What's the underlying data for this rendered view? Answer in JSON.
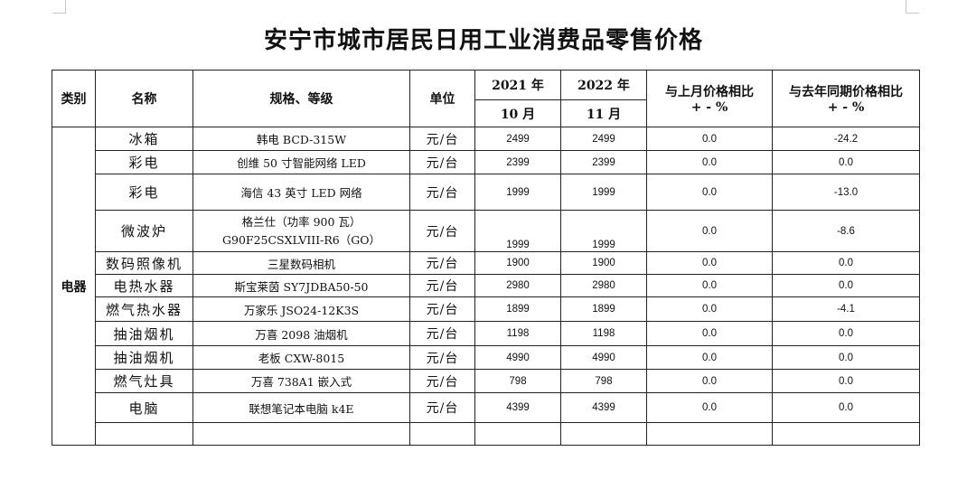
{
  "title": "安宁市城市居民日用工业消费品零售价格",
  "headers": {
    "category": "类别",
    "name": "名称",
    "spec": "规格、等级",
    "unit": "单位",
    "year1": "2021 年",
    "month1": "10 月",
    "year2": "2022 年",
    "month2": "11 月",
    "mom_line1": "与上月价格相比",
    "mom_line2": "+ - %",
    "yoy_line1": "与去年同期价格相比",
    "yoy_line2": "+ - %"
  },
  "category": "电器",
  "rows": [
    {
      "name": "冰箱",
      "spec": "韩电 BCD-315W",
      "spec2": "",
      "unit": "元/台",
      "p2021": "2499",
      "p2022": "2499",
      "mom": "0.0",
      "yoy": "-24.2"
    },
    {
      "name": "彩电",
      "spec": "创维 50 寸智能网络 LED",
      "spec2": "",
      "unit": "元/台",
      "p2021": "2399",
      "p2022": "2399",
      "mom": "0.0",
      "yoy": "0.0"
    },
    {
      "name": "彩电",
      "spec": "海信 43 英寸 LED 网络",
      "spec2": "",
      "unit": "元/台",
      "p2021": "1999",
      "p2022": "1999",
      "mom": "0.0",
      "yoy": "-13.0"
    },
    {
      "name": "微波炉",
      "spec": "格兰仕（功率 900 瓦）",
      "spec2": "G90F25CSXLVIII-R6（GO）",
      "unit": "元/台",
      "p2021": "1999",
      "p2022": "1999",
      "mom": "0.0",
      "yoy": "-8.6"
    },
    {
      "name": "数码照像机",
      "spec": "三星数码相机",
      "spec2": "",
      "unit": "元/台",
      "p2021": "1900",
      "p2022": "1900",
      "mom": "0.0",
      "yoy": "0.0"
    },
    {
      "name": "电热水器",
      "spec": "斯宝莱茵 SY7JDBA50-50",
      "spec2": "",
      "unit": "元/台",
      "p2021": "2980",
      "p2022": "2980",
      "mom": "0.0",
      "yoy": "0.0"
    },
    {
      "name": "燃气热水器",
      "spec": "万家乐 JSO24-12K3S",
      "spec2": "",
      "unit": "元/台",
      "p2021": "1899",
      "p2022": "1899",
      "mom": "0.0",
      "yoy": "-4.1"
    },
    {
      "name": "抽油烟机",
      "spec": "万喜 2098 油烟机",
      "spec2": "",
      "unit": "元/台",
      "p2021": "1198",
      "p2022": "1198",
      "mom": "0.0",
      "yoy": "0.0"
    },
    {
      "name": "抽油烟机",
      "spec": "老板 CXW-8015",
      "spec2": "",
      "unit": "元/台",
      "p2021": "4990",
      "p2022": "4990",
      "mom": "0.0",
      "yoy": "0.0"
    },
    {
      "name": "燃气灶具",
      "spec": "万喜 738A1 嵌入式",
      "spec2": "",
      "unit": "元/台",
      "p2021": "798",
      "p2022": "798",
      "mom": "0.0",
      "yoy": "0.0"
    },
    {
      "name": "电脑",
      "spec": "联想笔记本电脑 k4E",
      "spec2": "",
      "unit": "元/台",
      "p2021": "4399",
      "p2022": "4399",
      "mom": "0.0",
      "yoy": "0.0"
    },
    {
      "name": "",
      "spec": "",
      "spec2": "",
      "unit": "",
      "p2021": "",
      "p2022": "",
      "mom": "",
      "yoy": ""
    }
  ]
}
